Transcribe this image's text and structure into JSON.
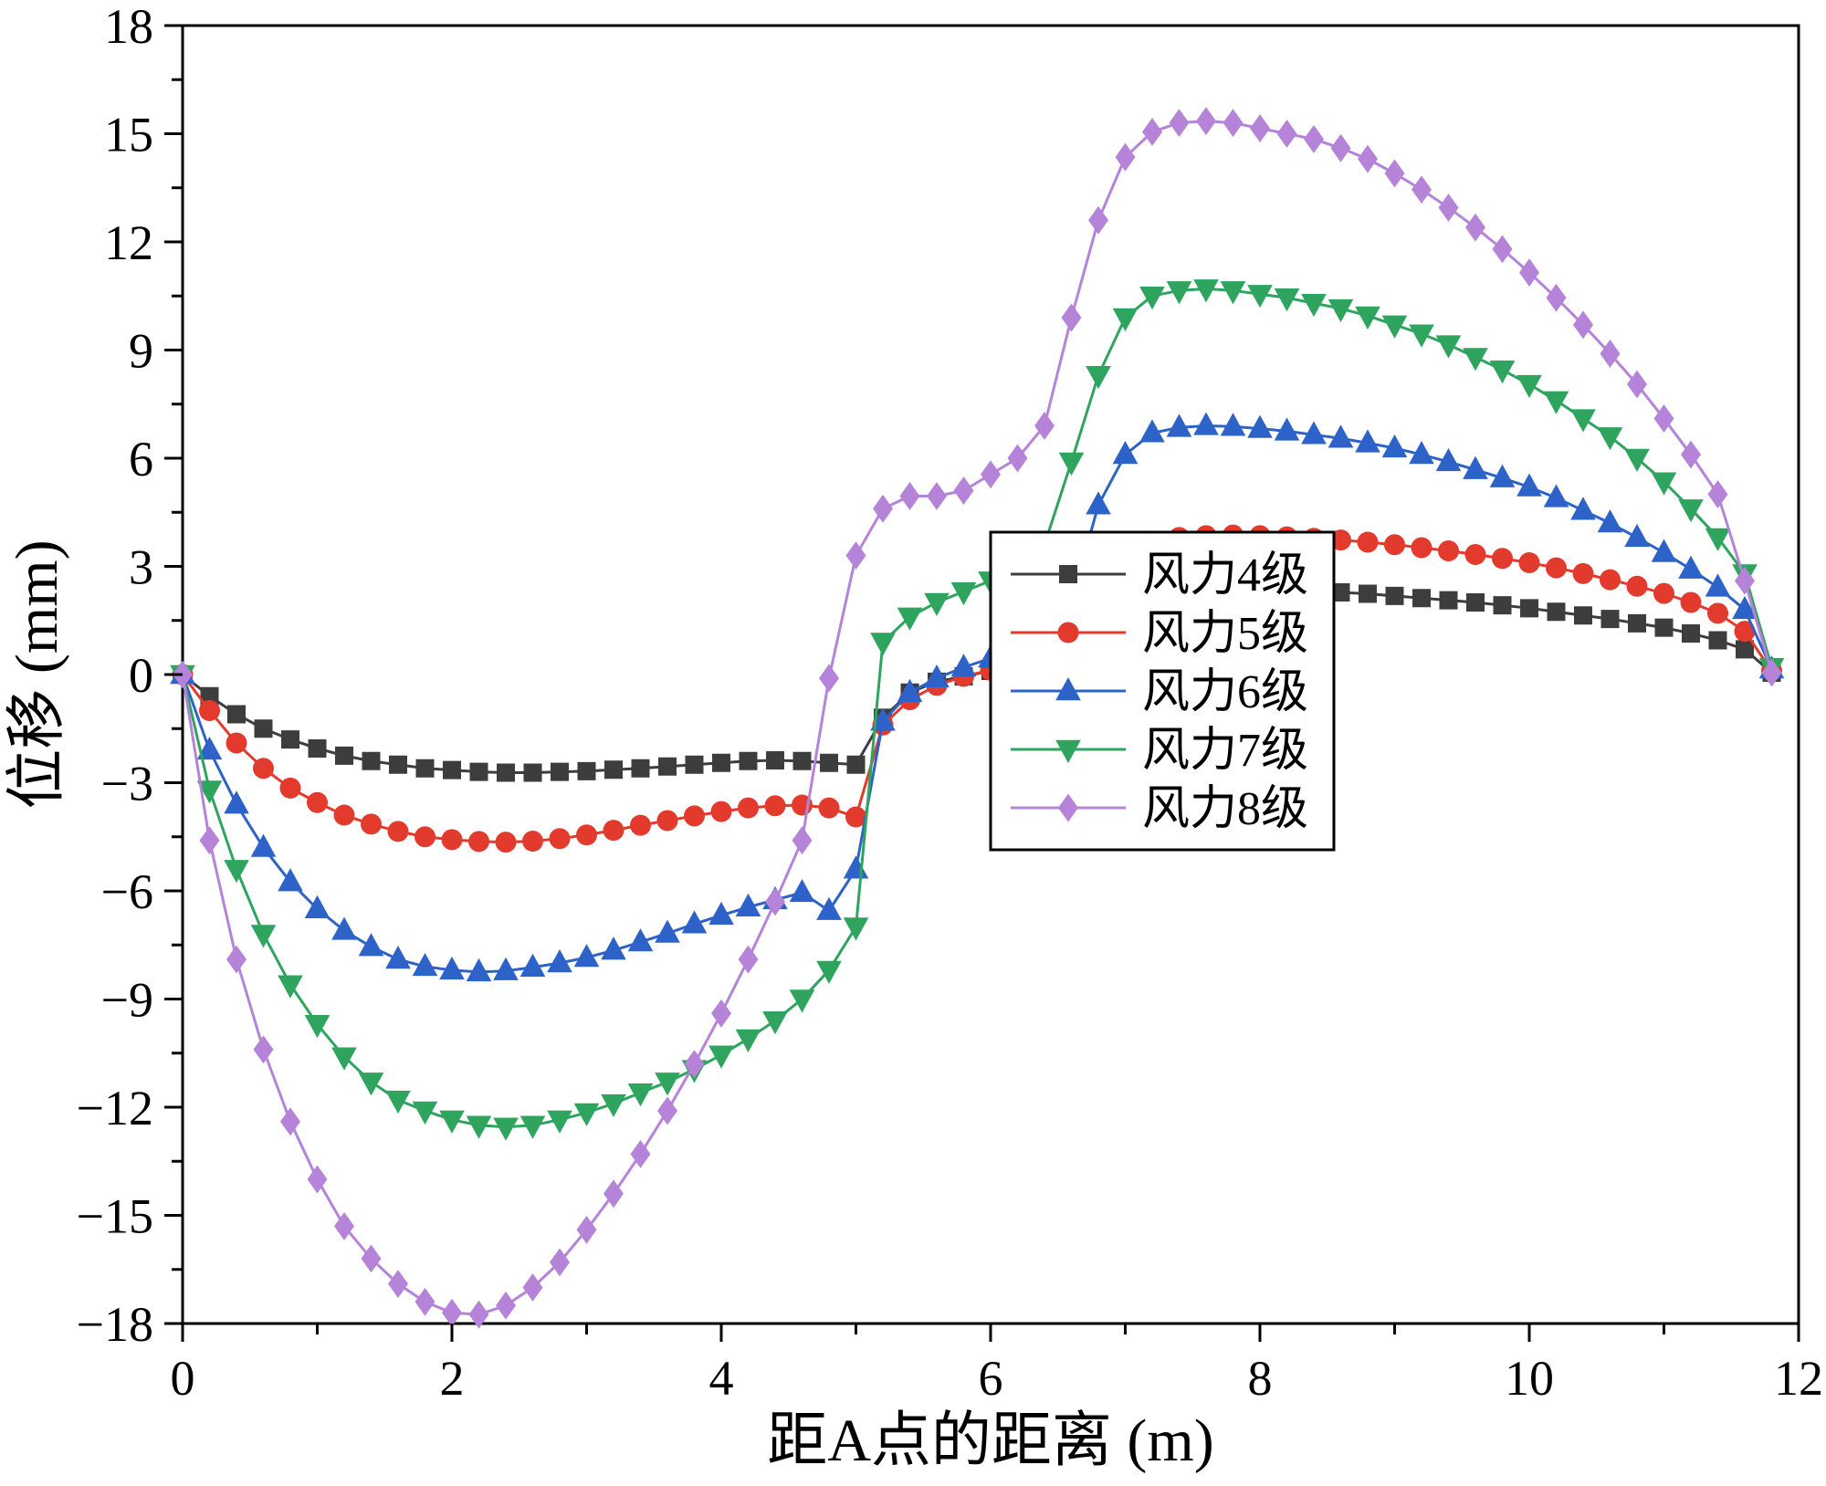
{
  "chart_data": {
    "type": "line",
    "title": "",
    "xlabel": "距A点的距离 (m)",
    "ylabel": "位移 (mm)",
    "xlim": [
      0,
      12
    ],
    "ylim": [
      -18,
      18
    ],
    "xticks": [
      0,
      2,
      4,
      6,
      8,
      10,
      12
    ],
    "yticks": [
      -18,
      -15,
      -12,
      -9,
      -6,
      -3,
      0,
      3,
      6,
      9,
      12,
      15,
      18
    ],
    "grid": false,
    "legend_position": "right-center-inside",
    "frame_color": "#000000",
    "background_color": "#ffffff",
    "x": [
      0,
      0.2,
      0.4,
      0.6,
      0.8,
      1,
      1.2,
      1.4,
      1.6,
      1.8,
      2,
      2.2,
      2.4,
      2.6,
      2.8,
      3,
      3.2,
      3.4,
      3.6,
      3.8,
      4,
      4.2,
      4.4,
      4.6,
      4.8,
      5,
      5.2,
      5.4,
      5.6,
      5.8,
      6,
      6.2,
      6.4,
      6.6,
      6.8,
      7,
      7.2,
      7.4,
      7.6,
      7.8,
      8,
      8.2,
      8.4,
      8.6,
      8.8,
      9,
      9.2,
      9.4,
      9.6,
      9.8,
      10,
      10.2,
      10.4,
      10.6,
      10.8,
      11,
      11.2,
      11.4,
      11.6,
      11.8
    ],
    "series": [
      {
        "name": "风力4级",
        "color": "#3d3d3d",
        "marker": "square",
        "values": [
          0,
          -0.6,
          -1.1,
          -1.5,
          -1.8,
          -2.05,
          -2.25,
          -2.4,
          -2.5,
          -2.6,
          -2.65,
          -2.7,
          -2.72,
          -2.72,
          -2.7,
          -2.68,
          -2.64,
          -2.6,
          -2.55,
          -2.5,
          -2.45,
          -2.4,
          -2.38,
          -2.4,
          -2.45,
          -2.5,
          -1.2,
          -0.5,
          -0.2,
          -0.05,
          0.1,
          0.2,
          0.3,
          0.6,
          1.5,
          2.1,
          2.3,
          2.35,
          2.4,
          2.4,
          2.38,
          2.35,
          2.32,
          2.28,
          2.24,
          2.18,
          2.12,
          2.06,
          2.0,
          1.92,
          1.84,
          1.74,
          1.64,
          1.54,
          1.42,
          1.3,
          1.14,
          0.95,
          0.7,
          0.05
        ]
      },
      {
        "name": "风力5级",
        "color": "#e23b2e",
        "marker": "circle",
        "values": [
          0,
          -1.0,
          -1.9,
          -2.6,
          -3.15,
          -3.55,
          -3.9,
          -4.15,
          -4.35,
          -4.5,
          -4.58,
          -4.63,
          -4.65,
          -4.62,
          -4.55,
          -4.45,
          -4.32,
          -4.18,
          -4.05,
          -3.92,
          -3.8,
          -3.7,
          -3.64,
          -3.62,
          -3.7,
          -3.95,
          -1.4,
          -0.7,
          -0.3,
          -0.05,
          0.12,
          0.28,
          0.5,
          0.9,
          2.4,
          3.4,
          3.7,
          3.8,
          3.85,
          3.87,
          3.85,
          3.82,
          3.78,
          3.73,
          3.67,
          3.6,
          3.52,
          3.43,
          3.33,
          3.22,
          3.1,
          2.96,
          2.8,
          2.63,
          2.45,
          2.25,
          2.0,
          1.7,
          1.2,
          0.1
        ]
      },
      {
        "name": "风力6级",
        "color": "#2d63c8",
        "marker": "triangle-up",
        "values": [
          0,
          -2.1,
          -3.6,
          -4.8,
          -5.75,
          -6.5,
          -7.1,
          -7.55,
          -7.9,
          -8.1,
          -8.2,
          -8.25,
          -8.22,
          -8.12,
          -8.0,
          -7.85,
          -7.65,
          -7.42,
          -7.18,
          -6.92,
          -6.68,
          -6.45,
          -6.25,
          -6.05,
          -6.55,
          -5.4,
          -1.3,
          -0.5,
          -0.1,
          0.2,
          0.45,
          0.7,
          1.0,
          2.0,
          4.7,
          6.1,
          6.7,
          6.85,
          6.9,
          6.88,
          6.82,
          6.75,
          6.65,
          6.55,
          6.42,
          6.28,
          6.1,
          5.9,
          5.68,
          5.45,
          5.2,
          4.9,
          4.55,
          4.2,
          3.8,
          3.38,
          2.92,
          2.42,
          1.8,
          0.15
        ]
      },
      {
        "name": "风力7级",
        "color": "#2fa45f",
        "marker": "triangle-down",
        "values": [
          0,
          -3.2,
          -5.4,
          -7.2,
          -8.6,
          -9.7,
          -10.6,
          -11.3,
          -11.8,
          -12.1,
          -12.35,
          -12.5,
          -12.55,
          -12.5,
          -12.35,
          -12.15,
          -11.9,
          -11.6,
          -11.3,
          -10.95,
          -10.55,
          -10.1,
          -9.6,
          -9.0,
          -8.2,
          -7.0,
          0.9,
          1.6,
          2.0,
          2.3,
          2.6,
          3.0,
          3.6,
          5.9,
          8.3,
          9.9,
          10.5,
          10.65,
          10.7,
          10.65,
          10.55,
          10.45,
          10.3,
          10.15,
          9.95,
          9.7,
          9.45,
          9.15,
          8.8,
          8.45,
          8.05,
          7.6,
          7.1,
          6.6,
          6.0,
          5.35,
          4.6,
          3.8,
          2.8,
          0.2
        ]
      },
      {
        "name": "风力8级",
        "color": "#b583d8",
        "marker": "diamond",
        "values": [
          0,
          -4.6,
          -7.9,
          -10.4,
          -12.4,
          -14.0,
          -15.3,
          -16.2,
          -16.9,
          -17.4,
          -17.7,
          -17.75,
          -17.5,
          -17.0,
          -16.3,
          -15.4,
          -14.4,
          -13.3,
          -12.1,
          -10.8,
          -9.4,
          -7.9,
          -6.3,
          -4.6,
          -0.1,
          3.3,
          4.6,
          4.95,
          4.95,
          5.1,
          5.55,
          6.0,
          6.9,
          9.9,
          12.6,
          14.35,
          15.05,
          15.3,
          15.35,
          15.3,
          15.15,
          15.0,
          14.85,
          14.6,
          14.3,
          13.9,
          13.45,
          12.95,
          12.4,
          11.8,
          11.15,
          10.45,
          9.7,
          8.9,
          8.05,
          7.1,
          6.1,
          5.0,
          2.6,
          0.05
        ]
      }
    ]
  }
}
